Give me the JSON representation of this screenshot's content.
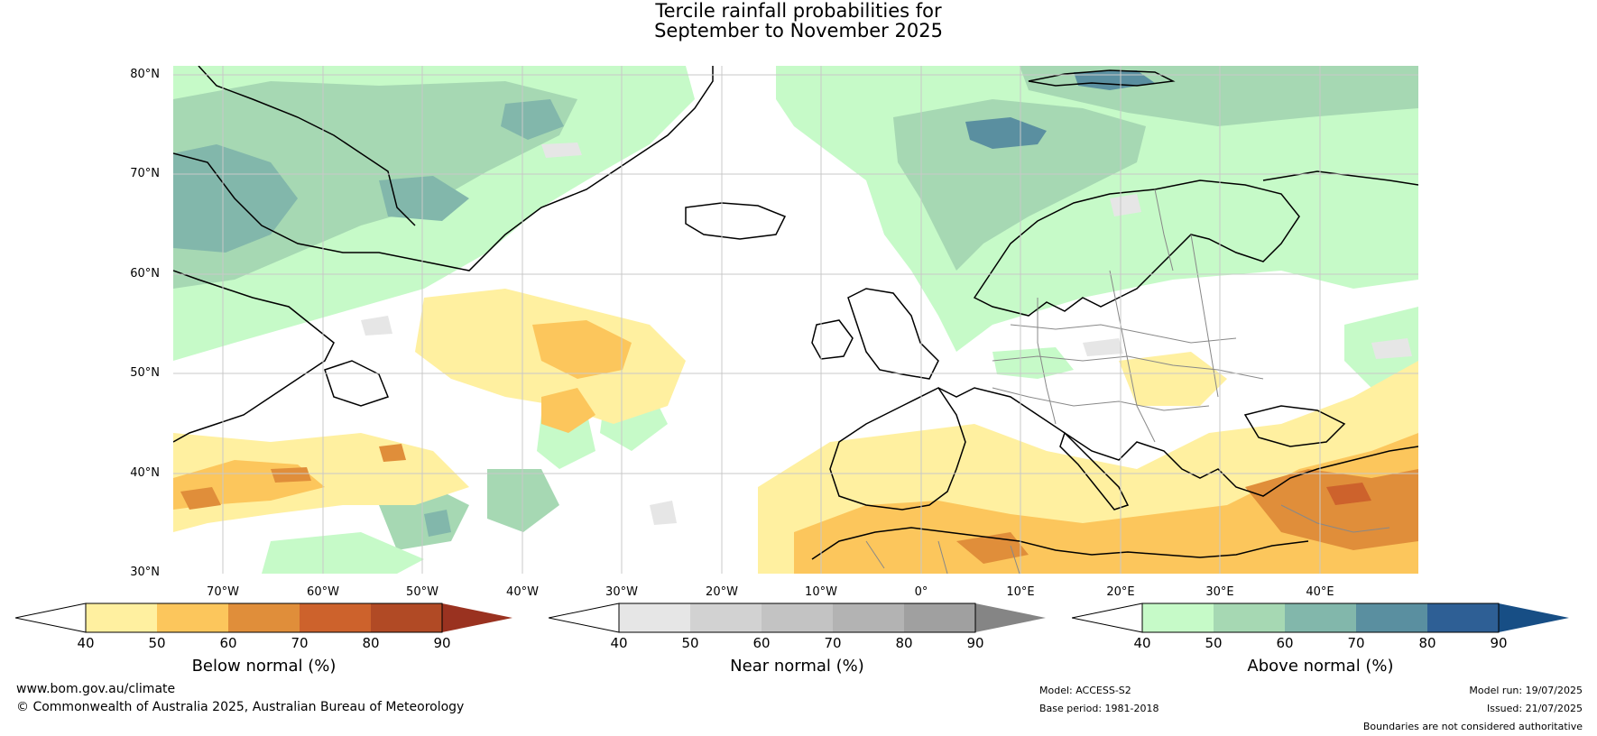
{
  "title_line1": "Tercile rainfall probabilities for",
  "title_line2": "September to November 2025",
  "lat_labels": [
    "80°N",
    "70°N",
    "60°N",
    "50°N",
    "40°N",
    "30°N"
  ],
  "lon_labels": [
    "70°W",
    "60°W",
    "50°W",
    "40°W",
    "30°W",
    "20°W",
    "10°W",
    "0°",
    "10°E",
    "20°E",
    "30°E",
    "40°E"
  ],
  "colorbars": [
    {
      "title": "Below normal (%)",
      "ticks": [
        "40",
        "50",
        "60",
        "70",
        "80",
        "90"
      ],
      "colors": [
        "#fff0a0",
        "#fcc65c",
        "#e08e3a",
        "#cd622c",
        "#b14a25"
      ],
      "low_color": "#ffffff",
      "high_color": "#9a3220"
    },
    {
      "title": "Near normal (%)",
      "ticks": [
        "40",
        "50",
        "60",
        "70",
        "80",
        "90"
      ],
      "colors": [
        "#e6e6e6",
        "#d2d2d2",
        "#c3c3c3",
        "#b3b3b3",
        "#a0a0a0"
      ],
      "low_color": "#ffffff",
      "high_color": "#858585"
    },
    {
      "title": "Above normal (%)",
      "ticks": [
        "40",
        "50",
        "60",
        "70",
        "80",
        "90"
      ],
      "colors": [
        "#c6fac8",
        "#a6d8b3",
        "#82b7ab",
        "#5a8fa0",
        "#2e5f95"
      ],
      "low_color": "#ffffff",
      "high_color": "#174e85"
    }
  ],
  "footer": {
    "website": "www.bom.gov.au/climate",
    "copyright": "© Commonwealth of Australia 2025, Australian Bureau of Meteorology",
    "model": "Model: ACCESS-S2",
    "base_period": "Base period: 1981-2018",
    "model_run": "Model run: 19/07/2025",
    "issued": "Issued: 21/07/2025",
    "disclaimer": "Boundaries are not considered authoritative"
  },
  "colors": {
    "above_light": "#c6fac8",
    "above_mid": "#a6d8b3",
    "above_dark": "#82b7ab",
    "above_deep": "#5a8fa0",
    "below_light": "#fff0a0",
    "below_mid": "#fcc65c",
    "below_dark": "#e08e3a",
    "below_deep": "#cd622c",
    "near_light": "#e6e6e6",
    "coast": "#000000",
    "border": "#888888",
    "grid": "#c8c8c8"
  }
}
